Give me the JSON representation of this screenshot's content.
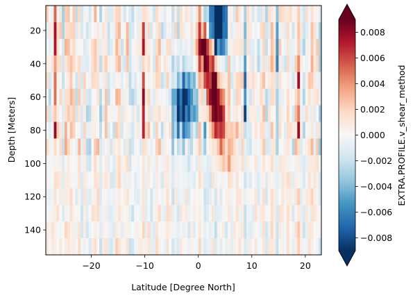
{
  "chart_data": {
    "type": "heatmap",
    "xlabel": "Latitude [Degree North]",
    "ylabel": "Depth [Meters]",
    "xlim": [
      -28.5,
      23
    ],
    "ylim": [
      155,
      5
    ],
    "x_ticks": [
      -20,
      -10,
      0,
      10,
      20
    ],
    "x_tick_labels": [
      "−20",
      "−10",
      "0",
      "10",
      "20"
    ],
    "y_ticks": [
      20,
      40,
      60,
      80,
      100,
      120,
      140
    ],
    "y_tick_labels": [
      "20",
      "40",
      "60",
      "80",
      "100",
      "120",
      "140"
    ],
    "colorbar": {
      "label": "EXTRA.PROFILE.v_shear_method",
      "vmin": -0.009,
      "vmax": 0.009,
      "colormap": "RdBu_r",
      "extend": "both",
      "ticks": [
        -0.008,
        -0.006,
        -0.004,
        -0.002,
        0,
        0.002,
        0.004,
        0.006,
        0.008
      ],
      "tick_labels": [
        "−0.008",
        "−0.006",
        "−0.004",
        "−0.002",
        "0.000",
        "0.002",
        "0.004",
        "0.006",
        "0.008"
      ]
    },
    "grid": {
      "lat_start": -28.5,
      "lat_step": 0.5,
      "lat_count": 103,
      "depth_start": 5,
      "depth_step": 10,
      "depth_count": 15
    },
    "features": [
      {
        "lat": 3.5,
        "width": 2.5,
        "depth": 5,
        "value": -0.009,
        "note": "strong negative core near surface"
      },
      {
        "lat": 2.5,
        "width": 3.0,
        "depth": 45,
        "value": 0.009,
        "note": "strong positive core sloping with depth"
      },
      {
        "lat": 4.5,
        "width": 2.5,
        "depth": 65,
        "value": 0.008
      },
      {
        "lat": -3.0,
        "width": 3.5,
        "depth": 60,
        "value": -0.008,
        "note": "negative lobe"
      }
    ]
  }
}
